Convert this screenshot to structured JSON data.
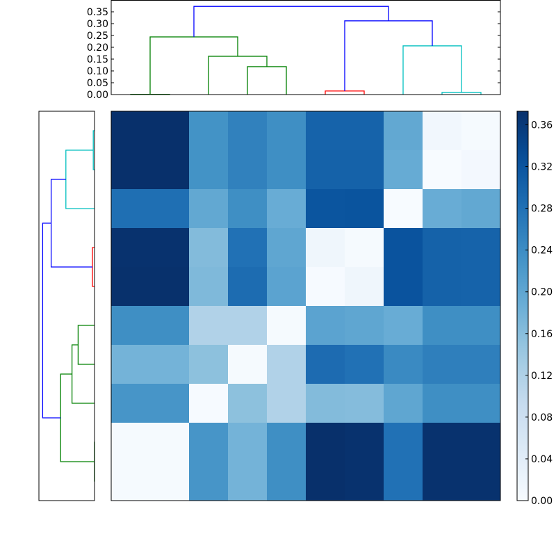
{
  "chart_data": [
    {
      "type": "dendrogram",
      "orientation": "top",
      "ylim": [
        0,
        0.4
      ],
      "yticks": [
        "0.00",
        "0.05",
        "0.10",
        "0.15",
        "0.20",
        "0.25",
        "0.30",
        "0.35"
      ],
      "ytick_values": [
        0,
        0.05,
        0.1,
        0.15,
        0.2,
        0.25,
        0.3,
        0.35
      ],
      "links": [
        {
          "color": "#008000",
          "x": [
            0,
            0,
            1,
            1
          ],
          "d": [
            0,
            0.001,
            0.001,
            0
          ]
        },
        {
          "color": "#008000",
          "x": [
            3,
            3,
            4,
            4
          ],
          "d": [
            0,
            0.118,
            0.118,
            0
          ]
        },
        {
          "color": "#008000",
          "x": [
            2,
            2,
            3.5,
            3.5
          ],
          "d": [
            0,
            0.162,
            0.162,
            0.118
          ]
        },
        {
          "color": "#008000",
          "x": [
            0.5,
            0.5,
            2.75,
            2.75
          ],
          "d": [
            0.001,
            0.244,
            0.244,
            0.162
          ]
        },
        {
          "color": "#ff0000",
          "x": [
            5,
            5,
            6,
            6
          ],
          "d": [
            0,
            0.015,
            0.015,
            0
          ]
        },
        {
          "color": "#00bfbf",
          "x": [
            8,
            8,
            9,
            9
          ],
          "d": [
            0,
            0.009,
            0.009,
            0
          ]
        },
        {
          "color": "#00bfbf",
          "x": [
            7,
            7,
            8.5,
            8.5
          ],
          "d": [
            0,
            0.206,
            0.206,
            0.009
          ]
        },
        {
          "color": "#0000ff",
          "x": [
            5.5,
            5.5,
            7.75,
            7.75
          ],
          "d": [
            0.015,
            0.312,
            0.312,
            0.206
          ]
        },
        {
          "color": "#0000ff",
          "x": [
            1.625,
            1.625,
            6.625,
            6.625
          ],
          "d": [
            0.244,
            0.373,
            0.373,
            0.312
          ]
        }
      ]
    },
    {
      "type": "dendrogram",
      "orientation": "left",
      "xlim": [
        0.4,
        0
      ],
      "leaf_order": "reversed"
    },
    {
      "type": "heatmap",
      "colormap": "Blues",
      "vmin": 0,
      "vmax": 0.373,
      "colorbar_ticks": [
        "0.00",
        "0.04",
        "0.08",
        "0.12",
        "0.16",
        "0.20",
        "0.24",
        "0.28",
        "0.32",
        "0.36"
      ],
      "colorbar_tick_values": [
        0,
        0.04,
        0.08,
        0.12,
        0.16,
        0.2,
        0.24,
        0.28,
        0.32,
        0.36
      ],
      "values": [
        [
          0.373,
          0.373,
          0.232,
          0.257,
          0.238,
          0.3,
          0.3,
          0.197,
          0.011,
          0.003
        ],
        [
          0.373,
          0.373,
          0.232,
          0.257,
          0.238,
          0.302,
          0.302,
          0.192,
          0.0,
          0.008
        ],
        [
          0.283,
          0.283,
          0.197,
          0.238,
          0.19,
          0.32,
          0.322,
          0.0,
          0.19,
          0.197
        ],
        [
          0.37,
          0.37,
          0.165,
          0.28,
          0.2,
          0.015,
          0.003,
          0.323,
          0.302,
          0.3
        ],
        [
          0.372,
          0.372,
          0.168,
          0.287,
          0.205,
          0.002,
          0.015,
          0.323,
          0.302,
          0.3
        ],
        [
          0.238,
          0.238,
          0.118,
          0.118,
          0.003,
          0.205,
          0.2,
          0.19,
          0.238,
          0.238
        ],
        [
          0.178,
          0.178,
          0.155,
          0.003,
          0.118,
          0.288,
          0.28,
          0.245,
          0.26,
          0.26
        ],
        [
          0.228,
          0.228,
          0.002,
          0.155,
          0.118,
          0.165,
          0.163,
          0.2,
          0.238,
          0.238
        ],
        [
          0.003,
          0.003,
          0.228,
          0.178,
          0.238,
          0.373,
          0.37,
          0.28,
          0.37,
          0.37
        ],
        [
          0.003,
          0.003,
          0.228,
          0.178,
          0.238,
          0.373,
          0.37,
          0.28,
          0.37,
          0.37
        ]
      ]
    }
  ]
}
